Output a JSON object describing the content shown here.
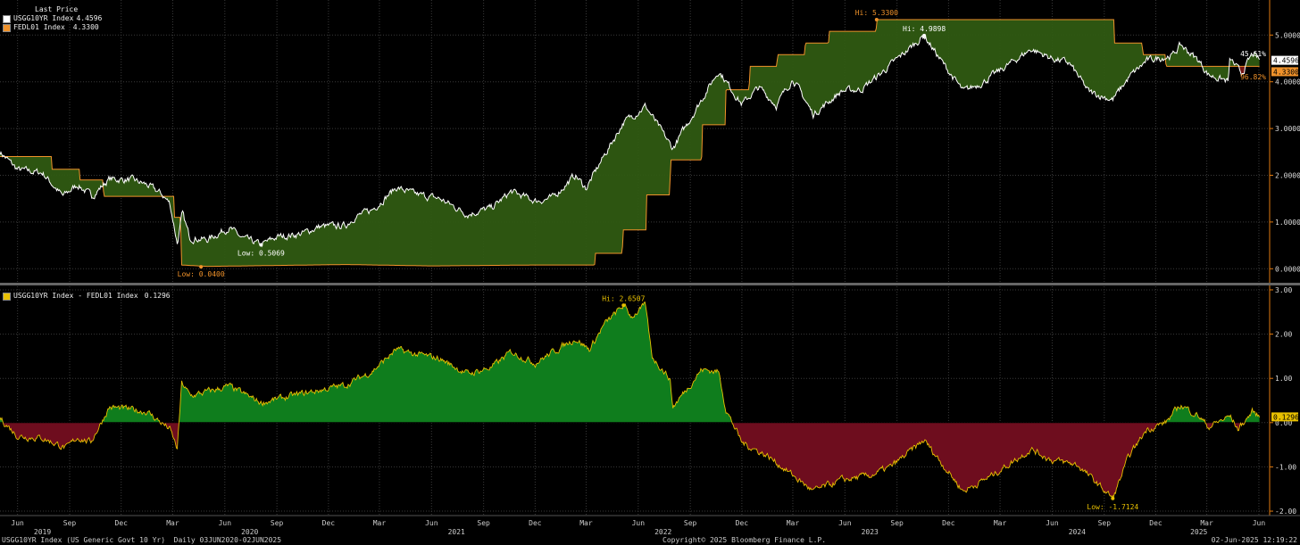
{
  "legend_top": {
    "heading": "Last Price",
    "entries": [
      {
        "name": "USGG10YR Index",
        "value": "4.4596",
        "color": "#ffffff"
      },
      {
        "name": "FEDL01 Index",
        "value": "4.3300",
        "color": "#f0922a"
      }
    ]
  },
  "legend_bottom": {
    "entries": [
      {
        "name": "USGG10YR Index - FEDL01 Index",
        "value": "0.1296",
        "color": "#e8c000"
      }
    ]
  },
  "chart_data": [
    {
      "type": "line",
      "x_range": [
        "2019-05-01",
        "2025-06-20"
      ],
      "ylim": [
        -0.3,
        5.75
      ],
      "y_ticks": [
        "0.0000",
        "1.0000",
        "2.0000",
        "3.0000",
        "4.0000",
        "5.0000"
      ],
      "series": [
        {
          "name": "USGG10YR Index",
          "color": "#ffffff",
          "points": [
            [
              "2019-05-01",
              2.5
            ],
            [
              "2019-06-01",
              2.12
            ],
            [
              "2019-07-15",
              2.05
            ],
            [
              "2019-08-20",
              1.55
            ],
            [
              "2019-09-15",
              1.8
            ],
            [
              "2019-10-10",
              1.55
            ],
            [
              "2019-11-10",
              1.92
            ],
            [
              "2019-12-20",
              1.9
            ],
            [
              "2020-01-15",
              1.8
            ],
            [
              "2020-02-10",
              1.6
            ],
            [
              "2020-02-25",
              1.4
            ],
            [
              "2020-03-09",
              0.54
            ],
            [
              "2020-03-18",
              1.18
            ],
            [
              "2020-03-31",
              0.67
            ],
            [
              "2020-05-01",
              0.62
            ],
            [
              "2020-06-08",
              0.88
            ],
            [
              "2020-07-01",
              0.66
            ],
            [
              "2020-08-04",
              0.51
            ],
            [
              "2020-09-01",
              0.68
            ],
            [
              "2020-10-15",
              0.75
            ],
            [
              "2020-11-15",
              0.9
            ],
            [
              "2020-12-31",
              0.92
            ],
            [
              "2021-01-15",
              1.1
            ],
            [
              "2021-02-15",
              1.25
            ],
            [
              "2021-03-31",
              1.74
            ],
            [
              "2021-05-01",
              1.6
            ],
            [
              "2021-06-15",
              1.5
            ],
            [
              "2021-08-04",
              1.17
            ],
            [
              "2021-09-15",
              1.3
            ],
            [
              "2021-10-20",
              1.65
            ],
            [
              "2021-12-01",
              1.45
            ],
            [
              "2021-12-31",
              1.51
            ],
            [
              "2022-02-10",
              2.0
            ],
            [
              "2022-03-01",
              1.72
            ],
            [
              "2022-04-01",
              2.4
            ],
            [
              "2022-05-06",
              3.13
            ],
            [
              "2022-06-14",
              3.48
            ],
            [
              "2022-08-01",
              2.57
            ],
            [
              "2022-08-31",
              3.19
            ],
            [
              "2022-10-21",
              4.24
            ],
            [
              "2022-12-01",
              3.52
            ],
            [
              "2022-12-31",
              3.88
            ],
            [
              "2023-01-31",
              3.5
            ],
            [
              "2023-03-01",
              4.07
            ],
            [
              "2023-04-06",
              3.3
            ],
            [
              "2023-05-26",
              3.8
            ],
            [
              "2023-06-30",
              3.84
            ],
            [
              "2023-08-01",
              4.15
            ],
            [
              "2023-10-19",
              4.99
            ],
            [
              "2023-11-15",
              4.5
            ],
            [
              "2023-12-27",
              3.79
            ],
            [
              "2024-02-01",
              4.0
            ],
            [
              "2024-04-25",
              4.7
            ],
            [
              "2024-06-01",
              4.5
            ],
            [
              "2024-07-01",
              4.4
            ],
            [
              "2024-08-05",
              3.78
            ],
            [
              "2024-09-16",
              3.62
            ],
            [
              "2024-10-15",
              4.1
            ],
            [
              "2024-11-15",
              4.45
            ],
            [
              "2024-12-31",
              4.57
            ],
            [
              "2025-01-14",
              4.79
            ],
            [
              "2025-02-15",
              4.45
            ],
            [
              "2025-03-04",
              4.15
            ],
            [
              "2025-04-08",
              4.01
            ],
            [
              "2025-04-11",
              4.49
            ],
            [
              "2025-05-01",
              4.17
            ],
            [
              "2025-05-21",
              4.6
            ],
            [
              "2025-06-02",
              4.4596
            ]
          ]
        },
        {
          "name": "FEDL01 Index",
          "color": "#f0922a",
          "points": [
            [
              "2019-05-01",
              2.4
            ],
            [
              "2019-07-31",
              2.4
            ],
            [
              "2019-08-01",
              2.13
            ],
            [
              "2019-09-18",
              2.13
            ],
            [
              "2019-09-19",
              1.9
            ],
            [
              "2019-10-30",
              1.9
            ],
            [
              "2019-10-31",
              1.55
            ],
            [
              "2020-03-03",
              1.55
            ],
            [
              "2020-03-04",
              1.1
            ],
            [
              "2020-03-15",
              1.1
            ],
            [
              "2020-03-16",
              0.08
            ],
            [
              "2020-05-01",
              0.05
            ],
            [
              "2021-01-01",
              0.09
            ],
            [
              "2021-06-01",
              0.06
            ],
            [
              "2021-12-01",
              0.08
            ],
            [
              "2022-03-16",
              0.08
            ],
            [
              "2022-03-17",
              0.33
            ],
            [
              "2022-05-04",
              0.33
            ],
            [
              "2022-05-05",
              0.83
            ],
            [
              "2022-06-15",
              0.83
            ],
            [
              "2022-06-16",
              1.58
            ],
            [
              "2022-07-27",
              1.58
            ],
            [
              "2022-07-28",
              2.33
            ],
            [
              "2022-09-21",
              2.33
            ],
            [
              "2022-09-22",
              3.08
            ],
            [
              "2022-11-02",
              3.08
            ],
            [
              "2022-11-03",
              3.83
            ],
            [
              "2022-12-14",
              3.83
            ],
            [
              "2022-12-15",
              4.33
            ],
            [
              "2023-02-01",
              4.33
            ],
            [
              "2023-02-02",
              4.58
            ],
            [
              "2023-03-22",
              4.58
            ],
            [
              "2023-03-23",
              4.83
            ],
            [
              "2023-05-03",
              4.83
            ],
            [
              "2023-05-04",
              5.08
            ],
            [
              "2023-07-26",
              5.08
            ],
            [
              "2023-07-27",
              5.33
            ],
            [
              "2024-09-18",
              5.33
            ],
            [
              "2024-09-19",
              4.83
            ],
            [
              "2024-11-07",
              4.83
            ],
            [
              "2024-11-08",
              4.58
            ],
            [
              "2024-12-18",
              4.58
            ],
            [
              "2024-12-19",
              4.33
            ],
            [
              "2025-06-02",
              4.33
            ]
          ]
        }
      ]
    },
    {
      "type": "area",
      "ylim": [
        -2.1,
        3.1
      ],
      "y_ticks": [
        "-2.00",
        "-1.00",
        "0.00",
        "1.00",
        "2.00",
        "3.00"
      ],
      "series": [
        {
          "name": "USGG10YR Index - FEDL01 Index",
          "color": "#e8c000",
          "points": [
            [
              "2019-05-01",
              0.1
            ],
            [
              "2019-06-01",
              -0.3
            ],
            [
              "2019-07-15",
              -0.35
            ],
            [
              "2019-08-27",
              -0.58
            ],
            [
              "2019-09-15",
              -0.33
            ],
            [
              "2019-10-08",
              -0.45
            ],
            [
              "2019-11-10",
              0.35
            ],
            [
              "2019-12-15",
              0.3
            ],
            [
              "2020-01-15",
              0.25
            ],
            [
              "2020-02-25",
              -0.15
            ],
            [
              "2020-03-09",
              -0.6
            ],
            [
              "2020-03-17",
              0.9
            ],
            [
              "2020-04-01",
              0.6
            ],
            [
              "2020-06-08",
              0.82
            ],
            [
              "2020-08-04",
              0.45
            ],
            [
              "2020-10-15",
              0.65
            ],
            [
              "2020-12-31",
              0.85
            ],
            [
              "2021-02-15",
              1.15
            ],
            [
              "2021-03-31",
              1.65
            ],
            [
              "2021-05-01",
              1.55
            ],
            [
              "2021-06-15",
              1.45
            ],
            [
              "2021-08-04",
              1.1
            ],
            [
              "2021-09-15",
              1.25
            ],
            [
              "2021-10-20",
              1.6
            ],
            [
              "2021-12-01",
              1.35
            ],
            [
              "2022-01-15",
              1.7
            ],
            [
              "2022-02-10",
              1.9
            ],
            [
              "2022-03-07",
              1.65
            ],
            [
              "2022-04-01",
              2.2
            ],
            [
              "2022-05-06",
              2.65
            ],
            [
              "2022-05-20",
              2.4
            ],
            [
              "2022-06-14",
              2.65
            ],
            [
              "2022-06-25",
              1.5
            ],
            [
              "2022-07-27",
              1.0
            ],
            [
              "2022-08-01",
              0.35
            ],
            [
              "2022-09-21",
              1.2
            ],
            [
              "2022-10-21",
              1.15
            ],
            [
              "2022-11-03",
              0.3
            ],
            [
              "2022-12-01",
              -0.45
            ],
            [
              "2023-01-15",
              -0.75
            ],
            [
              "2023-02-15",
              -1.05
            ],
            [
              "2023-04-06",
              -1.55
            ],
            [
              "2023-05-26",
              -1.3
            ],
            [
              "2023-07-15",
              -1.2
            ],
            [
              "2023-08-21",
              -1.0
            ],
            [
              "2023-10-19",
              -0.4
            ],
            [
              "2023-12-27",
              -1.55
            ],
            [
              "2024-02-15",
              -1.2
            ],
            [
              "2024-04-25",
              -0.6
            ],
            [
              "2024-06-01",
              -0.85
            ],
            [
              "2024-07-15",
              -0.95
            ],
            [
              "2024-09-16",
              -1.71
            ],
            [
              "2024-10-15",
              -0.75
            ],
            [
              "2024-11-15",
              -0.15
            ],
            [
              "2024-12-18",
              0.0
            ],
            [
              "2025-01-14",
              0.4
            ],
            [
              "2025-02-15",
              0.15
            ],
            [
              "2025-03-04",
              -0.1
            ],
            [
              "2025-04-11",
              0.15
            ],
            [
              "2025-04-25",
              -0.15
            ],
            [
              "2025-05-21",
              0.25
            ],
            [
              "2025-06-02",
              0.1296
            ]
          ]
        }
      ]
    }
  ],
  "annotations": {
    "top": {
      "hi_fed": "Hi: 5.3300",
      "hi_10y": "Hi: 4.9898",
      "low_10y": "Low: 0.5069",
      "low_fed": "Low: 0.0400",
      "pct_10y": "45.61%",
      "pct_fed": "96.82%",
      "tag_10y": "4.4596",
      "tag_fed": "4.3300"
    },
    "bottom": {
      "hi": "Hi: 2.6507",
      "low": "Low: -1.7124",
      "tag": "0.1296"
    }
  },
  "x_axis": {
    "months": [
      {
        "d": "2019-06-01",
        "l": "Jun"
      },
      {
        "d": "2019-09-01",
        "l": "Sep"
      },
      {
        "d": "2019-12-01",
        "l": "Dec"
      },
      {
        "d": "2020-03-01",
        "l": "Mar"
      },
      {
        "d": "2020-06-01",
        "l": "Jun"
      },
      {
        "d": "2020-09-01",
        "l": "Sep"
      },
      {
        "d": "2020-12-01",
        "l": "Dec"
      },
      {
        "d": "2021-03-01",
        "l": "Mar"
      },
      {
        "d": "2021-06-01",
        "l": "Jun"
      },
      {
        "d": "2021-09-01",
        "l": "Sep"
      },
      {
        "d": "2021-12-01",
        "l": "Dec"
      },
      {
        "d": "2022-03-01",
        "l": "Mar"
      },
      {
        "d": "2022-06-01",
        "l": "Jun"
      },
      {
        "d": "2022-09-01",
        "l": "Sep"
      },
      {
        "d": "2022-12-01",
        "l": "Dec"
      },
      {
        "d": "2023-03-01",
        "l": "Mar"
      },
      {
        "d": "2023-06-01",
        "l": "Jun"
      },
      {
        "d": "2023-09-01",
        "l": "Sep"
      },
      {
        "d": "2023-12-01",
        "l": "Dec"
      },
      {
        "d": "2024-03-01",
        "l": "Mar"
      },
      {
        "d": "2024-06-01",
        "l": "Jun"
      },
      {
        "d": "2024-09-01",
        "l": "Sep"
      },
      {
        "d": "2024-12-01",
        "l": "Dec"
      },
      {
        "d": "2025-03-01",
        "l": "Mar"
      },
      {
        "d": "2025-06-01",
        "l": "Jun"
      }
    ],
    "years": [
      {
        "d": "2019-07-15",
        "l": "2019"
      },
      {
        "d": "2020-07-15",
        "l": "2020"
      },
      {
        "d": "2021-07-15",
        "l": "2021"
      },
      {
        "d": "2022-07-15",
        "l": "2022"
      },
      {
        "d": "2023-07-15",
        "l": "2023"
      },
      {
        "d": "2024-07-15",
        "l": "2024"
      },
      {
        "d": "2025-02-15",
        "l": "2025"
      }
    ]
  },
  "footer": {
    "left": "USGG10YR Index (US Generic Govt 10 Yr)  Daily 03JUN2020-02JUN2025",
    "center": "Copyright© 2025 Bloomberg Finance L.P.",
    "right": "02-Jun-2025 12:19:22"
  }
}
